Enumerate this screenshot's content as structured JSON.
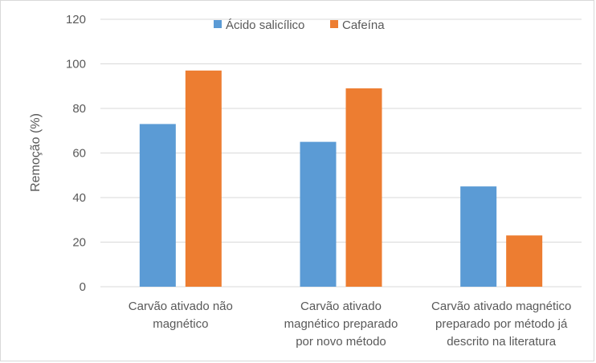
{
  "chart_data": {
    "type": "bar",
    "title": "",
    "xlabel": "",
    "ylabel": "Remoção (%)",
    "ylim": [
      0,
      120
    ],
    "yticks": [
      0,
      20,
      40,
      60,
      80,
      100,
      120
    ],
    "grid": true,
    "legend": "top-center",
    "categories": [
      [
        "Carvão ativado não",
        "magnético"
      ],
      [
        "Carvão ativado",
        "magnético preparado",
        "por novo método"
      ],
      [
        "Carvão ativado magnético",
        "preparado por método já",
        "descrito na literatura"
      ]
    ],
    "series": [
      {
        "name": "Ácido salicílico",
        "color": "#5b9bd5",
        "values": [
          73,
          65,
          45
        ]
      },
      {
        "name": "Cafeína",
        "color": "#ed7d31",
        "values": [
          97,
          89,
          23
        ]
      }
    ]
  }
}
